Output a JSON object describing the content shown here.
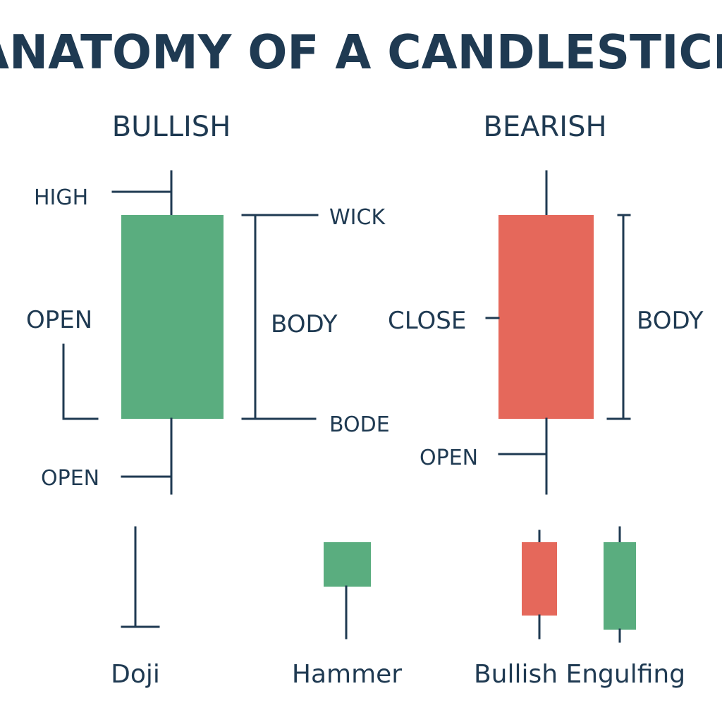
{
  "title": "ANATOMY OF A CANDLESTICK",
  "colors": {
    "ink": "#1f3a52",
    "bullish": "#5aad7f",
    "bearish": "#e5685b",
    "background": "#ffffff"
  },
  "bullish": {
    "heading": "BULLISH",
    "labels": {
      "high": "HIGH",
      "open_mid": "OPEN",
      "open_low": "OPEN",
      "wick": "WICK",
      "body": "BODY",
      "bode": "BODE"
    }
  },
  "bearish": {
    "heading": "BEARISH",
    "labels": {
      "close": "CLOSE",
      "body": "BODY",
      "open": "OPEN"
    }
  },
  "patterns": [
    {
      "name": "Doji"
    },
    {
      "name": "Hammer"
    },
    {
      "name": "Bullish Engulfing"
    }
  ]
}
